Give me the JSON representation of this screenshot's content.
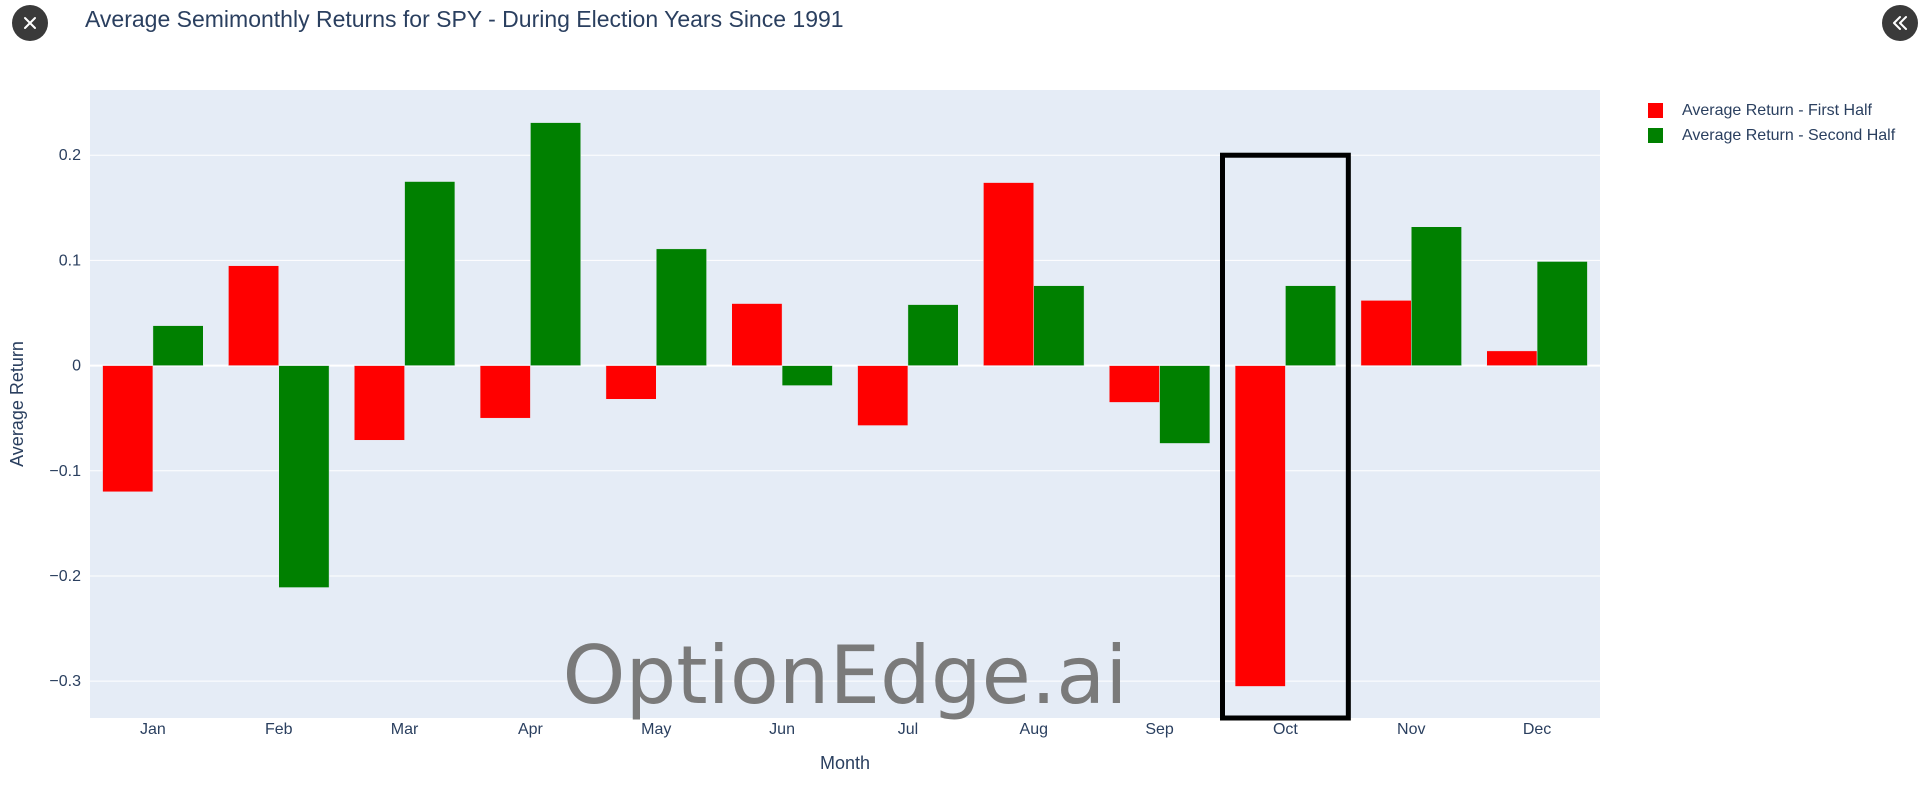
{
  "ui": {
    "close_icon": "close-icon",
    "collapse_icon": "double-chevron-left-icon",
    "watermark": "OptionEdge.ai"
  },
  "colors": {
    "first_half": "#ff0000",
    "second_half": "#008000",
    "plot_bg": "#e5ecf6",
    "grid": "#ffffff",
    "text": "#2a3f5f",
    "highlight_box": "#000000",
    "watermark": "#7a7a7a"
  },
  "chart_data": {
    "type": "bar",
    "title": "Average Semimonthly Returns for SPY - During Election Years Since 1991",
    "xlabel": "Month",
    "ylabel": "Average Return",
    "categories": [
      "Jan",
      "Feb",
      "Mar",
      "Apr",
      "May",
      "Jun",
      "Jul",
      "Aug",
      "Sep",
      "Oct",
      "Nov",
      "Dec"
    ],
    "series": [
      {
        "name": "Average Return - First Half",
        "values": [
          -0.12,
          0.095,
          -0.071,
          -0.05,
          -0.032,
          0.059,
          -0.057,
          0.174,
          -0.035,
          -0.305,
          0.062,
          0.014
        ]
      },
      {
        "name": "Average Return - Second Half",
        "values": [
          0.038,
          -0.211,
          0.175,
          0.231,
          0.111,
          -0.019,
          0.058,
          0.076,
          -0.074,
          0.076,
          0.132,
          0.099
        ]
      }
    ],
    "yticks": [
      0.2,
      0.1,
      0,
      -0.1,
      -0.2,
      -0.3
    ],
    "ytick_labels": [
      "0.2",
      "0.1",
      "0",
      "−0.1",
      "−0.2",
      "−0.3"
    ],
    "ylim": [
      -0.335,
      0.262
    ],
    "grid": true,
    "legend_position": "top-right",
    "highlighted_category": "Oct"
  }
}
